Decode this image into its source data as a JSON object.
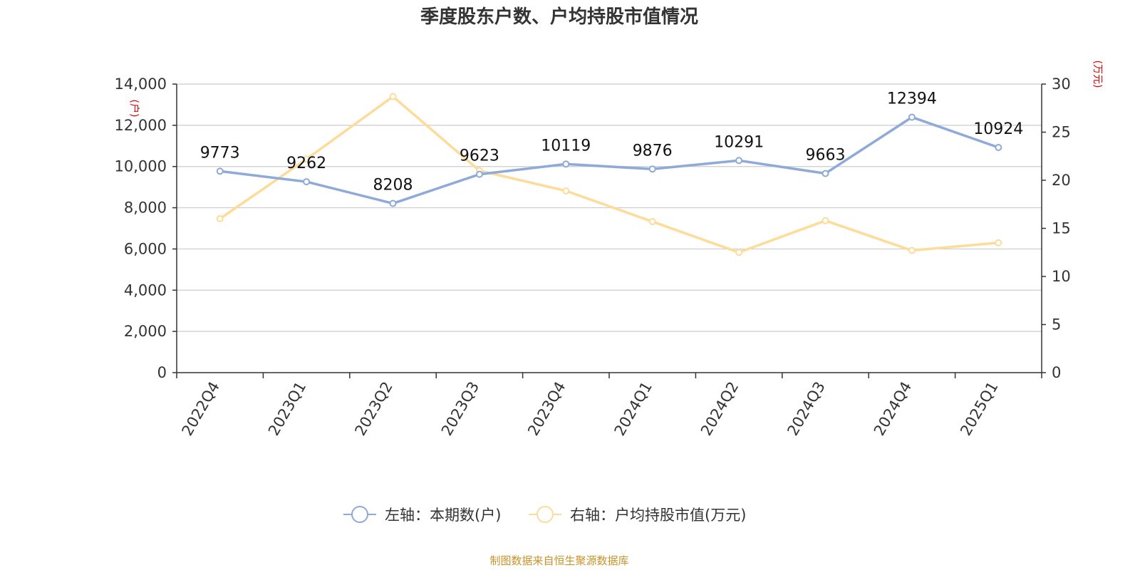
{
  "chart_data": {
    "type": "line",
    "title": "季度股东户数、户均持股市值情况",
    "categories": [
      "2022Q4",
      "2023Q1",
      "2023Q2",
      "2023Q3",
      "2023Q4",
      "2024Q1",
      "2024Q2",
      "2024Q3",
      "2024Q4",
      "2025Q1"
    ],
    "left_axis": {
      "unit": "(户)",
      "ylim": [
        0,
        14000
      ],
      "ticks": [
        "0",
        "2,000",
        "4,000",
        "6,000",
        "8,000",
        "10,000",
        "12,000",
        "14,000"
      ]
    },
    "right_axis": {
      "unit": "(万元)",
      "ylim": [
        0,
        30
      ],
      "ticks": [
        "0",
        "5",
        "10",
        "15",
        "20",
        "25",
        "30"
      ]
    },
    "series": [
      {
        "name": "左轴：本期数(户)",
        "axis": "left",
        "color": "#8eaad8",
        "values": [
          9773,
          9262,
          8208,
          9623,
          10119,
          9876,
          10291,
          9663,
          12394,
          10924
        ],
        "labels": [
          "9773",
          "9262",
          "8208",
          "9623",
          "10119",
          "9876",
          "10291",
          "9663",
          "12394",
          "10924"
        ]
      },
      {
        "name": "右轴：户均持股市值(万元)",
        "axis": "right",
        "color": "#fddc9a",
        "values": [
          16.0,
          22.2,
          28.7,
          21.0,
          18.9,
          15.7,
          12.5,
          15.8,
          12.7,
          13.5
        ]
      }
    ],
    "grid": true,
    "legend": "bottom-center",
    "source": "制图数据来自恒生聚源数据库"
  }
}
